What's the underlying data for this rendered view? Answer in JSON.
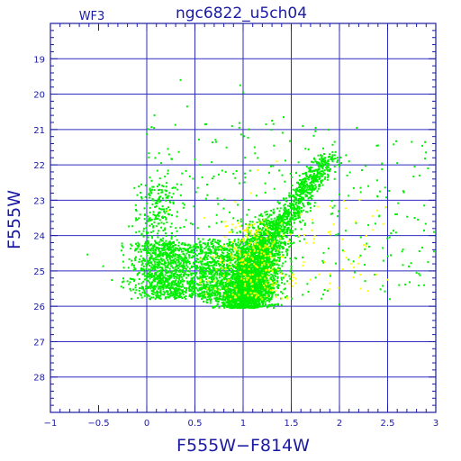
{
  "chart_data": {
    "type": "scatter",
    "title": "ngc6822_u5ch04",
    "corner_label": "WF3",
    "xlabel": "F555W−F814W",
    "ylabel": "F555W",
    "xlim": [
      -1,
      3
    ],
    "ylim": [
      29,
      18
    ],
    "y_inverted": true,
    "grid": true,
    "x_ticks": [
      -1,
      -0.5,
      0,
      0.5,
      1,
      1.5,
      2,
      2.5,
      3
    ],
    "x_tick_labels": [
      "−1",
      "−0.5",
      "0",
      "0.5",
      "1",
      "1.5",
      "2",
      "2.5",
      "3"
    ],
    "y_ticks": [
      19,
      20,
      21,
      22,
      23,
      24,
      25,
      26,
      27,
      28
    ],
    "y_tick_labels": [
      "19",
      "20",
      "21",
      "22",
      "23",
      "24",
      "25",
      "26",
      "27",
      "28"
    ],
    "series": [
      {
        "color": "#00ee00",
        "points": [
          [
            0.35,
            19.6
          ],
          [
            0.97,
            19.75
          ],
          [
            1.0,
            19.95
          ],
          [
            0.42,
            20.35
          ],
          [
            0.08,
            20.6
          ],
          [
            0.62,
            20.85
          ],
          [
            0.96,
            20.95
          ],
          [
            1.3,
            20.75
          ],
          [
            1.42,
            20.65
          ],
          [
            1.62,
            20.9
          ],
          [
            1.75,
            21.05
          ],
          [
            2.18,
            20.95
          ],
          [
            2.4,
            21.45
          ],
          [
            2.75,
            21.35
          ],
          [
            1.95,
            21.35
          ],
          [
            0.22,
            21.55
          ],
          [
            0.72,
            21.35
          ],
          [
            1.12,
            21.5
          ],
          [
            0.15,
            21.95
          ],
          [
            0.5,
            21.85
          ],
          [
            2.6,
            21.95
          ],
          [
            2.92,
            22.1
          ],
          [
            2.78,
            22.05
          ],
          [
            2.08,
            22.3
          ],
          [
            2.22,
            22.65
          ],
          [
            2.48,
            23.2
          ],
          [
            2.78,
            23.5
          ],
          [
            2.98,
            23.9
          ],
          [
            2.88,
            23.15
          ],
          [
            2.65,
            24.45
          ],
          [
            2.52,
            24.05
          ],
          [
            2.98,
            24.45
          ],
          [
            2.3,
            23.7
          ],
          [
            2.45,
            24.35
          ],
          [
            2.8,
            25.05
          ],
          [
            2.0,
            25.95
          ],
          [
            2.62,
            25.4
          ],
          [
            2.92,
            24.75
          ],
          [
            1.85,
            22.25
          ],
          [
            1.95,
            22.05
          ],
          [
            2.02,
            21.95
          ],
          [
            1.78,
            22.15
          ],
          [
            1.7,
            22.3
          ],
          [
            1.88,
            22.0
          ],
          [
            1.98,
            21.8
          ],
          [
            1.65,
            22.4
          ],
          [
            1.58,
            22.55
          ],
          [
            1.52,
            22.7
          ],
          [
            1.48,
            22.8
          ],
          [
            1.42,
            22.95
          ],
          [
            1.36,
            23.05
          ],
          [
            1.82,
            22.45
          ],
          [
            1.72,
            22.6
          ],
          [
            1.62,
            22.75
          ],
          [
            2.1,
            21.9
          ],
          [
            2.3,
            22.6
          ],
          [
            1.95,
            22.4
          ],
          [
            0.05,
            22.45
          ],
          [
            -0.05,
            22.95
          ],
          [
            0.1,
            23.05
          ],
          [
            -0.1,
            23.55
          ],
          [
            -0.05,
            23.95
          ],
          [
            0.02,
            24.2
          ],
          [
            -0.12,
            24.7
          ],
          [
            -0.15,
            24.8
          ],
          [
            -0.08,
            25.05
          ],
          [
            0.55,
            22.0
          ],
          [
            0.9,
            22.25
          ],
          [
            0.32,
            22.7
          ],
          [
            0.82,
            22.2
          ]
        ]
      },
      {
        "color": "#ffff00",
        "points": [
          [
            0.22,
            23.3
          ],
          [
            0.6,
            23.5
          ],
          [
            1.08,
            22.8
          ],
          [
            1.22,
            23.55
          ],
          [
            1.02,
            23.85
          ],
          [
            1.28,
            24.05
          ],
          [
            0.96,
            24.45
          ],
          [
            1.2,
            24.7
          ],
          [
            1.1,
            25.1
          ],
          [
            1.32,
            25.4
          ],
          [
            1.05,
            25.7
          ],
          [
            0.82,
            24.95
          ],
          [
            0.75,
            25.55
          ],
          [
            1.4,
            24.6
          ],
          [
            1.52,
            25.1
          ],
          [
            1.62,
            24.85
          ],
          [
            1.72,
            23.55
          ],
          [
            1.58,
            24.0
          ],
          [
            1.85,
            24.75
          ],
          [
            1.9,
            25.35
          ],
          [
            2.15,
            24.9
          ],
          [
            2.05,
            24.45
          ],
          [
            2.28,
            24.3
          ],
          [
            2.38,
            25.1
          ],
          [
            2.22,
            25.5
          ],
          [
            2.5,
            25.25
          ],
          [
            1.7,
            25.25
          ],
          [
            1.46,
            25.75
          ],
          [
            0.92,
            23.05
          ],
          [
            1.15,
            22.15
          ],
          [
            1.35,
            21.9
          ],
          [
            0.55,
            25.35
          ],
          [
            1.25,
            24.3
          ],
          [
            1.15,
            24.9
          ]
        ]
      }
    ]
  }
}
